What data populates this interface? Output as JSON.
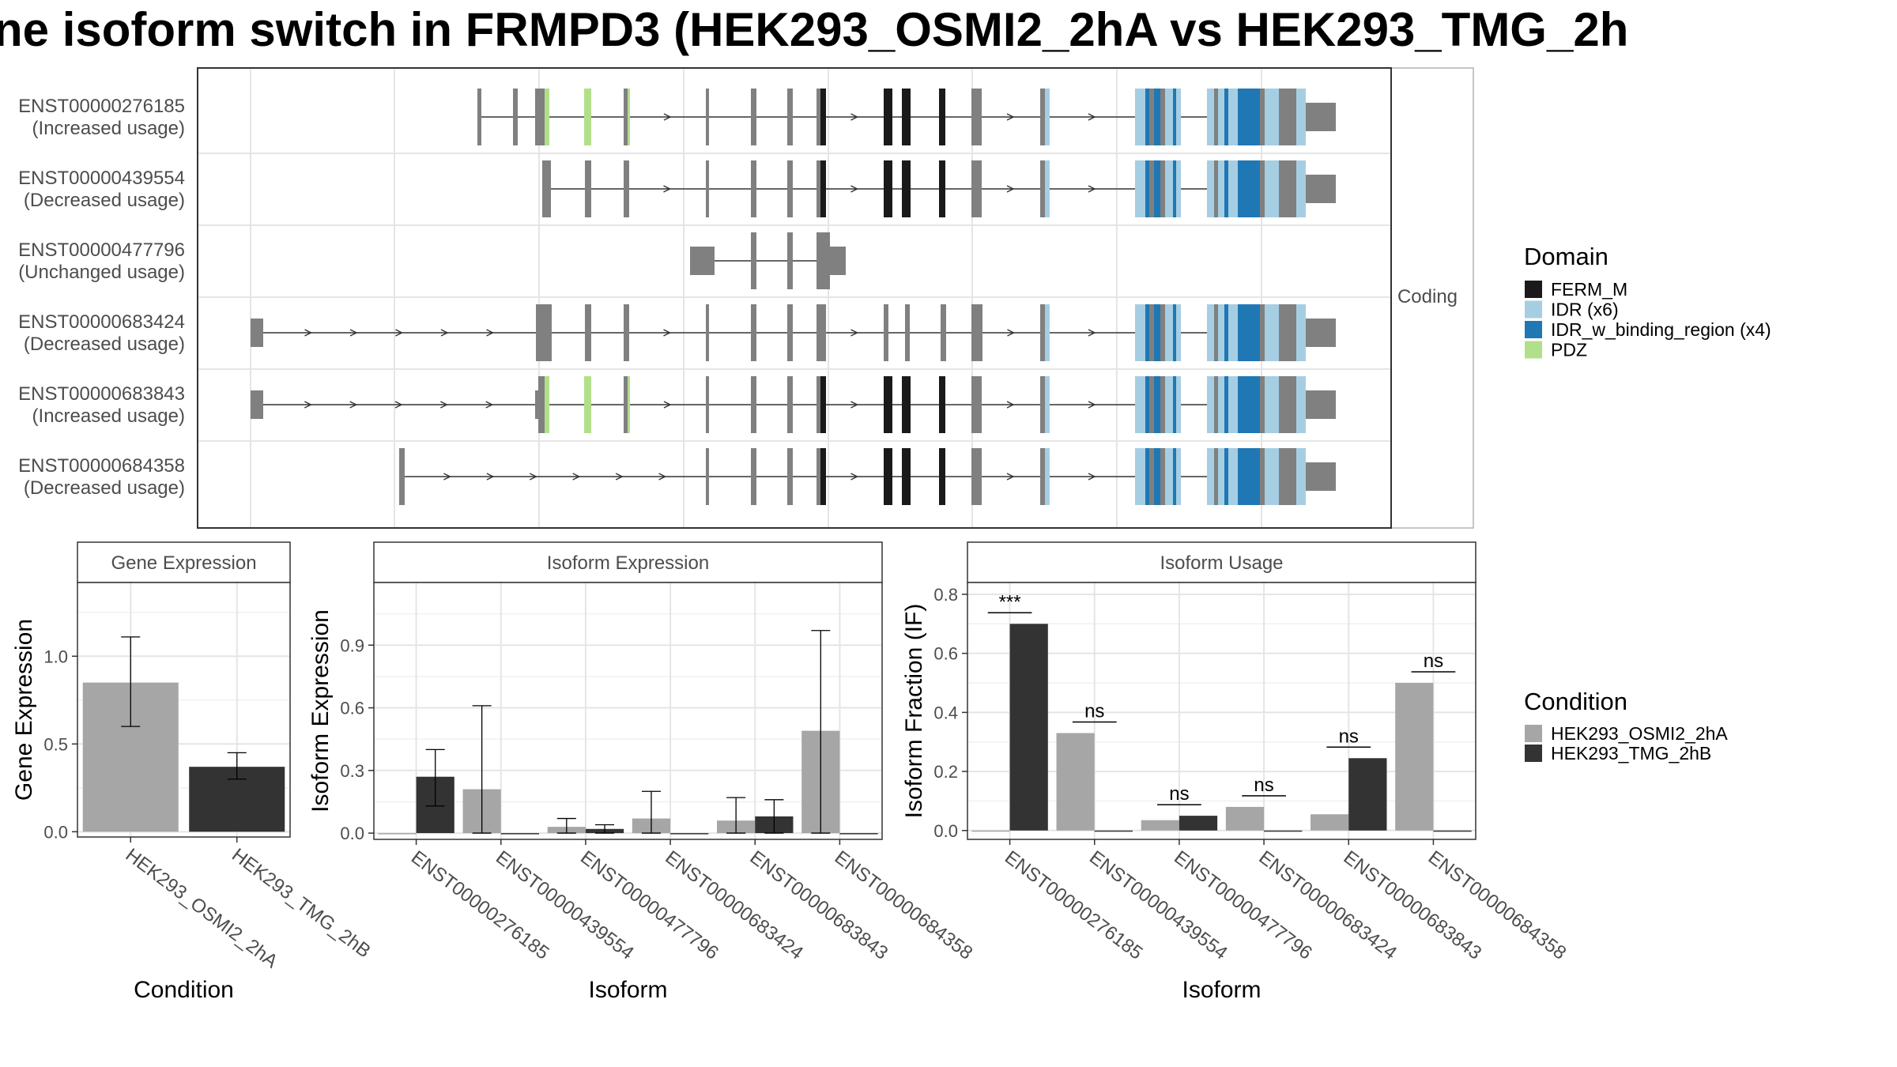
{
  "title": "ne isoform switch in FRMPD3 (HEK293_OSMI2_2hA vs HEK293_TMG_2h",
  "structure": {
    "strip_label": "Coding",
    "transcripts": [
      {
        "id": "ENST00000276185",
        "usage": "(Increased usage)"
      },
      {
        "id": "ENST00000439554",
        "usage": "(Decreased usage)"
      },
      {
        "id": "ENST00000477796",
        "usage": "(Unchanged usage)"
      },
      {
        "id": "ENST00000683424",
        "usage": "(Decreased usage)"
      },
      {
        "id": "ENST00000683843",
        "usage": "(Increased usage)"
      },
      {
        "id": "ENST00000684358",
        "usage": "(Decreased usage)"
      }
    ]
  },
  "domain_legend": {
    "title": "Domain",
    "items": [
      {
        "label": "FERM_M",
        "color": "#1a1a1a"
      },
      {
        "label": "IDR (x6)",
        "color": "#a6cee3"
      },
      {
        "label": "IDR_w_binding_region (x4)",
        "color": "#1f78b4"
      },
      {
        "label": "PDZ",
        "color": "#b2df8a"
      }
    ]
  },
  "condition_legend": {
    "title": "Condition",
    "items": [
      {
        "label": "HEK293_OSMI2_2hA",
        "color": "#a6a6a6"
      },
      {
        "label": "HEK293_TMG_2hB",
        "color": "#333333"
      }
    ]
  },
  "colors": {
    "exon": "#808080",
    "condA": "#a6a6a6",
    "condB": "#333333"
  },
  "chart_data": [
    {
      "type": "bar",
      "panel_title": "Gene Expression",
      "xlabel": "Condition",
      "ylabel": "Gene Expression",
      "ylim": [
        -0.03,
        1.42
      ],
      "yticks": [
        "0.0",
        "0.5",
        "1.0"
      ],
      "categories": [
        "HEK293_OSMI2_2hA",
        "HEK293_TMG_2hB"
      ],
      "values": [
        0.85,
        0.37
      ],
      "error": [
        [
          0.6,
          1.11
        ],
        [
          0.3,
          0.45
        ]
      ]
    },
    {
      "type": "bar",
      "panel_title": "Isoform Expression",
      "xlabel": "Isoform",
      "ylabel": "Isoform Expression",
      "ylim": [
        -0.03,
        1.2
      ],
      "yticks": [
        "0.0",
        "0.3",
        "0.6",
        "0.9"
      ],
      "categories": [
        "ENST00000276185",
        "ENST00000439554",
        "ENST00000477796",
        "ENST00000683424",
        "ENST00000683843",
        "ENST00000684358"
      ],
      "series": [
        {
          "name": "HEK293_OSMI2_2hA",
          "values": [
            0.0,
            0.21,
            0.03,
            0.07,
            0.06,
            0.49
          ],
          "error": [
            null,
            [
              0.0,
              0.61
            ],
            [
              0.0,
              0.07
            ],
            [
              0.0,
              0.2
            ],
            [
              0.0,
              0.17
            ],
            [
              0.0,
              0.97
            ]
          ]
        },
        {
          "name": "HEK293_TMG_2hB",
          "values": [
            0.27,
            0.0,
            0.02,
            0.0,
            0.08,
            0.0
          ],
          "error": [
            [
              0.13,
              0.4
            ],
            null,
            [
              0.0,
              0.04
            ],
            null,
            [
              0.0,
              0.16
            ],
            null
          ]
        }
      ]
    },
    {
      "type": "bar",
      "panel_title": "Isoform Usage",
      "xlabel": "Isoform",
      "ylabel": "Isoform Fraction (IF)",
      "ylim": [
        -0.03,
        0.84
      ],
      "yticks": [
        "0.0",
        "0.2",
        "0.4",
        "0.6",
        "0.8"
      ],
      "categories": [
        "ENST00000276185",
        "ENST00000439554",
        "ENST00000477796",
        "ENST00000683424",
        "ENST00000683843",
        "ENST00000684358"
      ],
      "series": [
        {
          "name": "HEK293_OSMI2_2hA",
          "values": [
            0.0,
            0.33,
            0.035,
            0.08,
            0.055,
            0.5
          ]
        },
        {
          "name": "HEK293_TMG_2hB",
          "values": [
            0.7,
            0.0,
            0.05,
            0.0,
            0.245,
            0.0
          ]
        }
      ],
      "significance": [
        "***",
        "ns",
        "ns",
        "ns",
        "ns",
        "ns"
      ]
    }
  ]
}
